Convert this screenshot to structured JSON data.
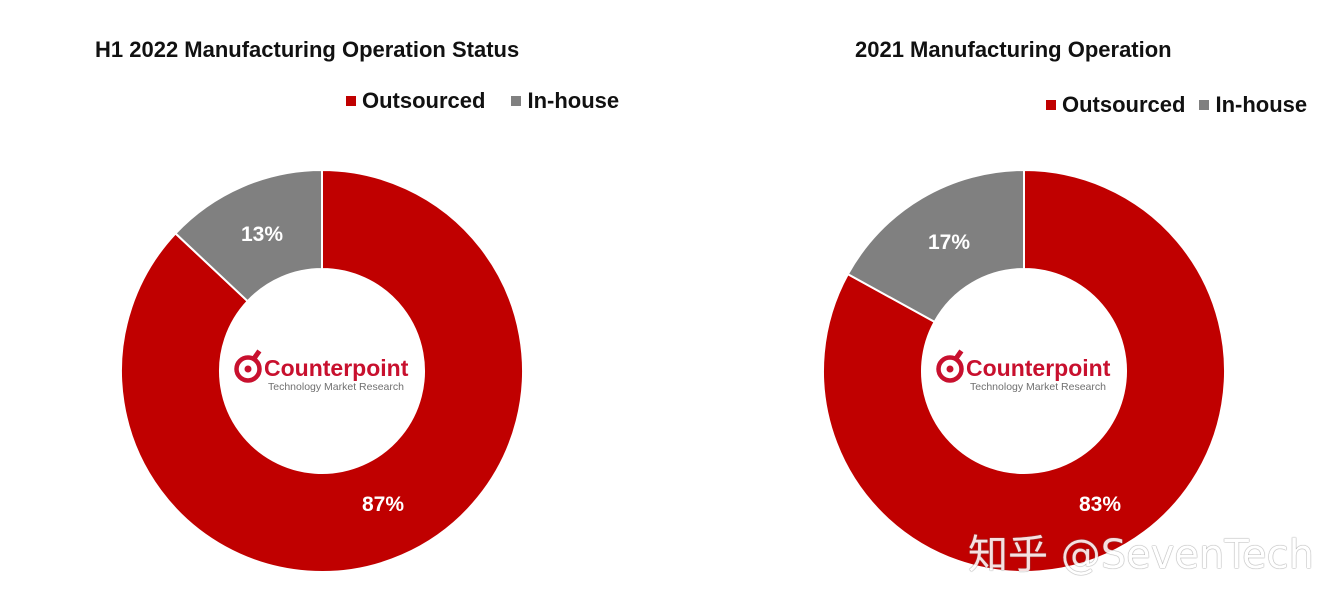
{
  "colors": {
    "outsourced": "#C00000",
    "in_house": "#808080",
    "logo_red": "#C8102E",
    "logo_gray": "#707070"
  },
  "logo": {
    "name": "Counterpoint",
    "tagline": "Technology Market Research"
  },
  "watermark": "知乎 @SevenTech",
  "chart_data": [
    {
      "type": "pie",
      "title": "H1 2022 Manufacturing Operation Status",
      "legend_position": "top-right",
      "categories": [
        "Outsourced",
        "In-house"
      ],
      "values": [
        87,
        13
      ],
      "labels": [
        "87%",
        "13%"
      ]
    },
    {
      "type": "pie",
      "title": "2021 Manufacturing Operation",
      "legend_position": "top-right",
      "categories": [
        "Outsourced",
        "In-house"
      ],
      "values": [
        83,
        17
      ],
      "labels": [
        "83%",
        "17%"
      ]
    }
  ]
}
